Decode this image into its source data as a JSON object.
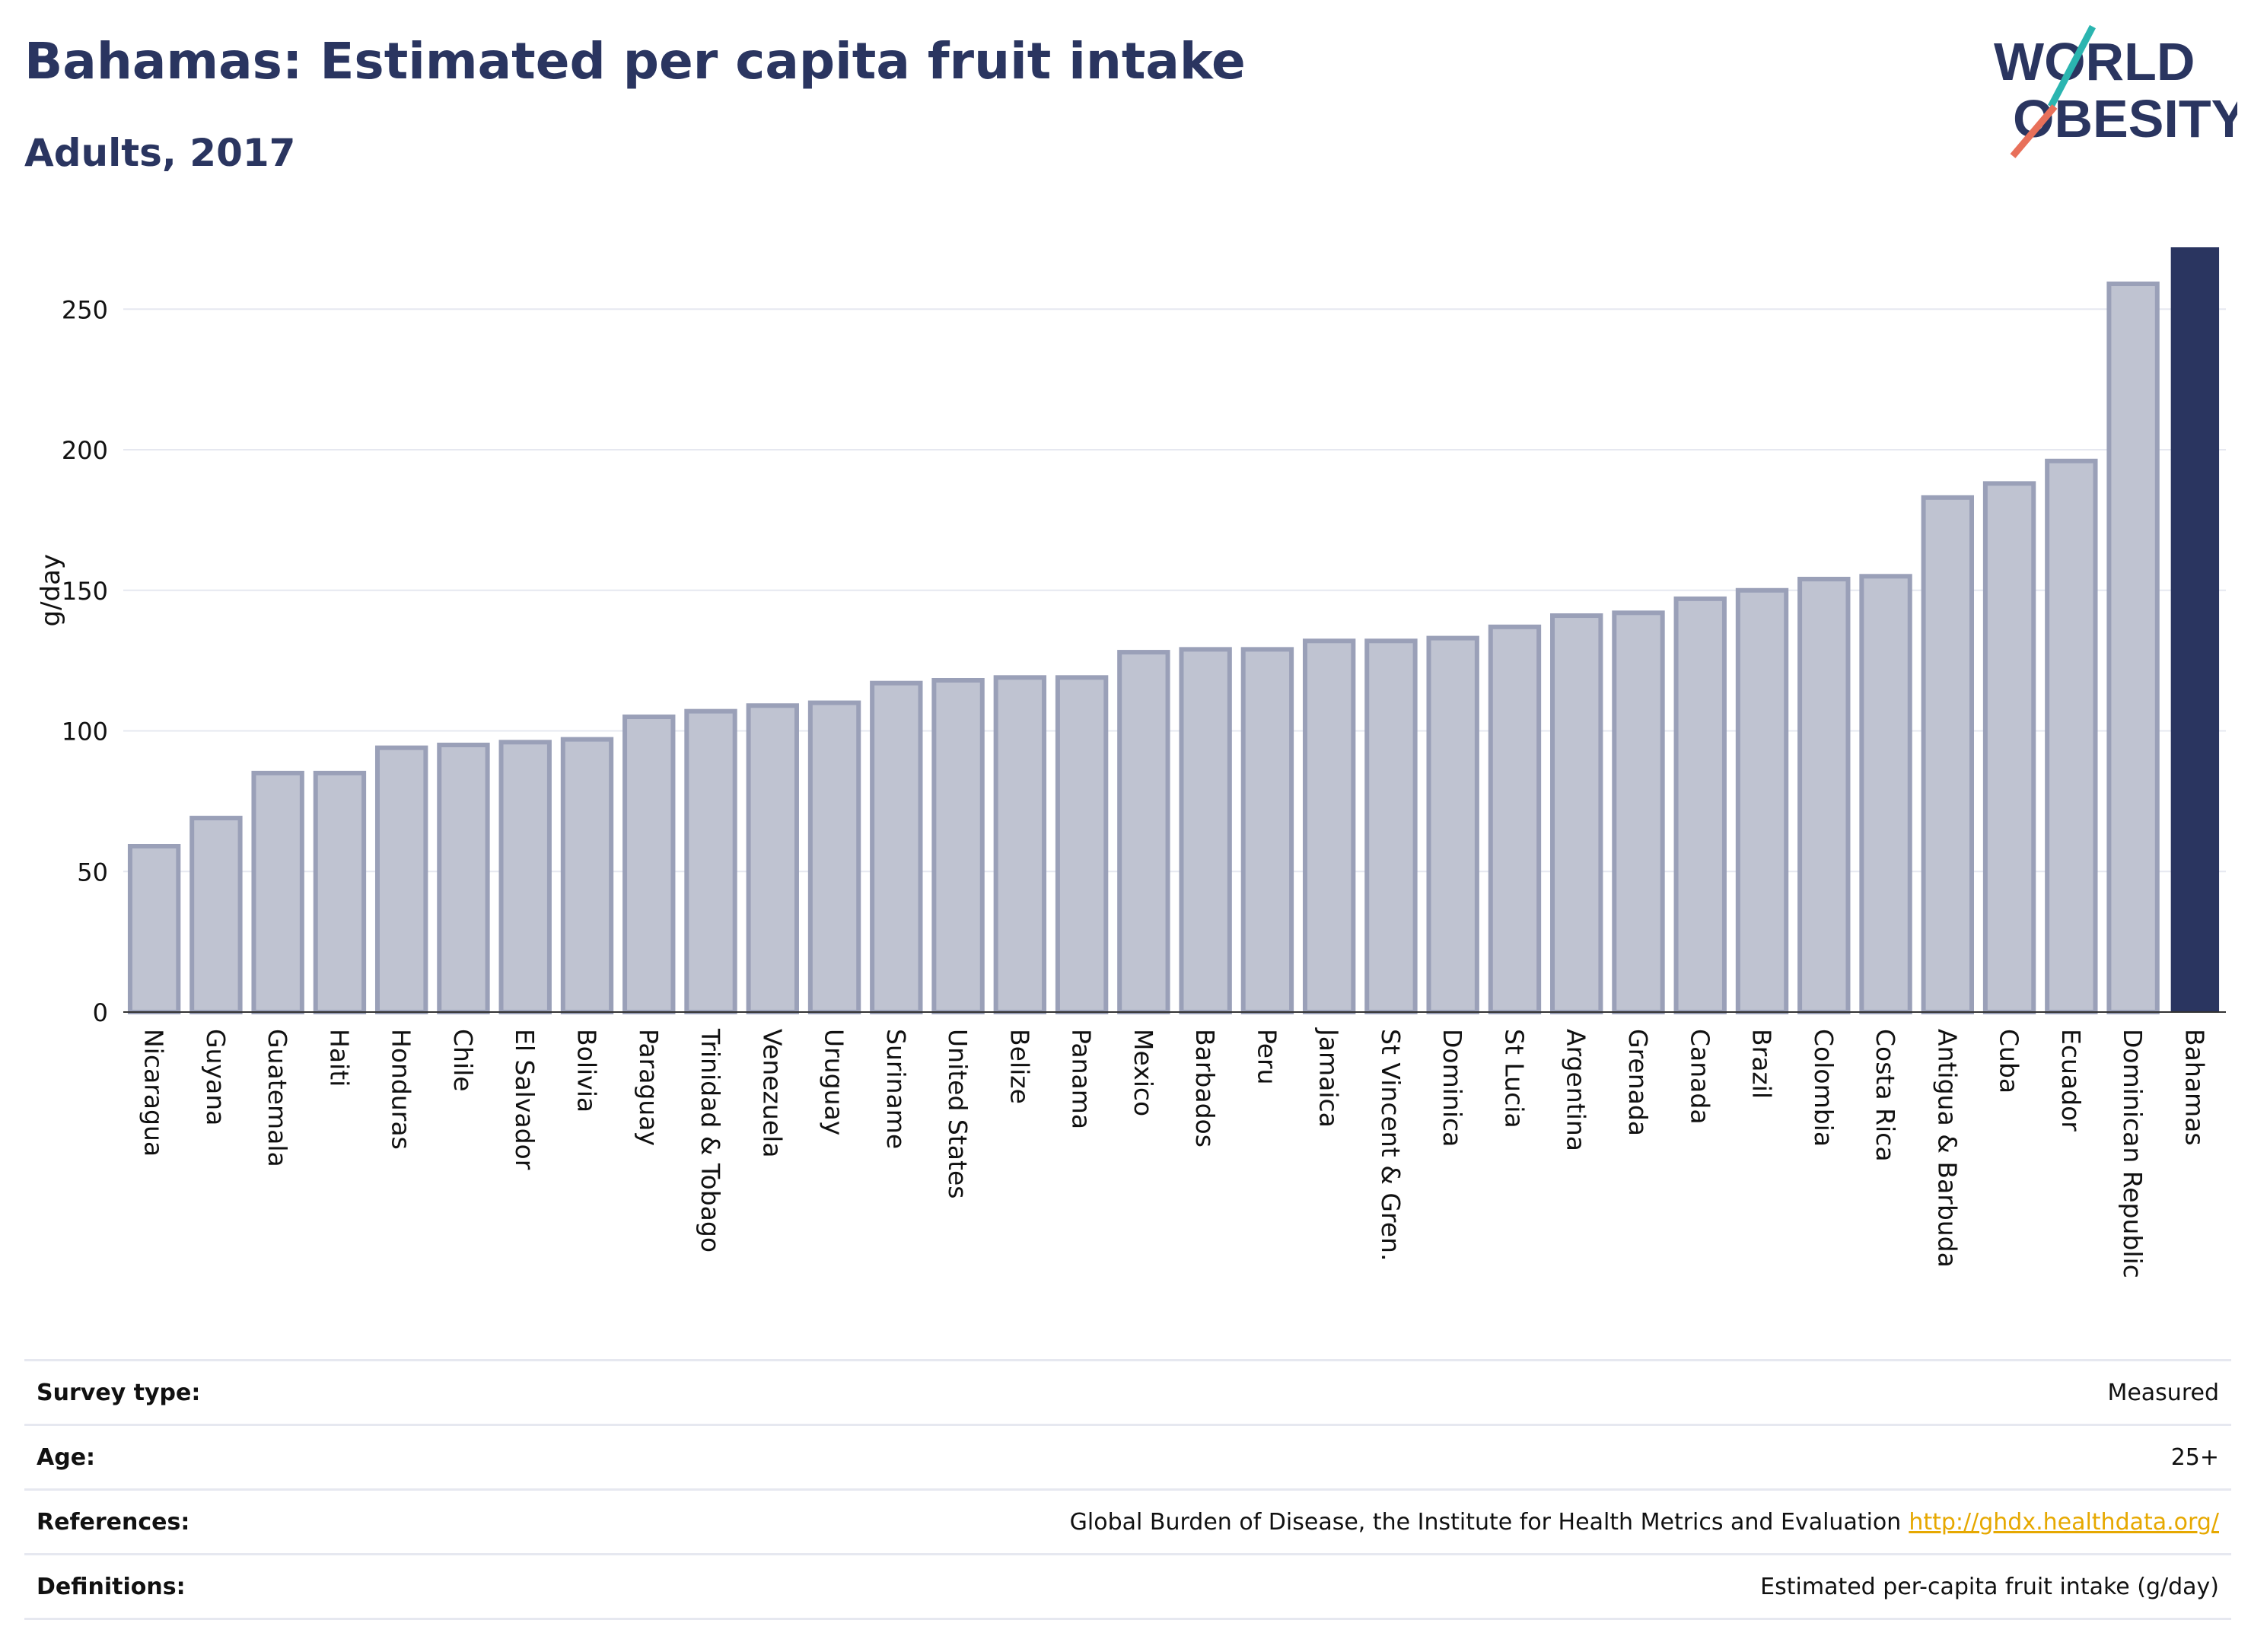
{
  "header": {
    "title": "Bahamas: Estimated per capita fruit intake",
    "subtitle": "Adults, 2017"
  },
  "logo": {
    "line1": "WORLD",
    "line2": "OBESITY"
  },
  "colors": {
    "bar": "#bfc3d1",
    "bar_border": "#9aa0b8",
    "highlight": "#2a3560",
    "grid": "#e6e8f0",
    "axis_text": "#111111",
    "logo_teal": "#2bb5b0",
    "logo_coral": "#e8705a"
  },
  "chart_data": {
    "type": "bar",
    "ylabel": "g/day",
    "ylim": [
      0,
      272
    ],
    "yticks": [
      0,
      50,
      100,
      150,
      200,
      250
    ],
    "grid": true,
    "highlight_category": "Bahamas",
    "categories": [
      "Nicaragua",
      "Guyana",
      "Guatemala",
      "Haiti",
      "Honduras",
      "Chile",
      "El Salvador",
      "Bolivia",
      "Paraguay",
      "Trinidad & Tobago",
      "Venezuela",
      "Uruguay",
      "Suriname",
      "United States",
      "Belize",
      "Panama",
      "Mexico",
      "Barbados",
      "Peru",
      "Jamaica",
      "St Vincent & Gren.",
      "Dominica",
      "St Lucia",
      "Argentina",
      "Grenada",
      "Canada",
      "Brazil",
      "Colombia",
      "Costa Rica",
      "Antigua & Barbuda",
      "Cuba",
      "Ecuador",
      "Dominican Republic",
      "Bahamas"
    ],
    "values": [
      59,
      69,
      85,
      85,
      94,
      95,
      96,
      97,
      105,
      107,
      109,
      110,
      117,
      118,
      119,
      119,
      128,
      129,
      129,
      132,
      132,
      133,
      137,
      141,
      142,
      147,
      150,
      154,
      155,
      183,
      188,
      196,
      259,
      272
    ]
  },
  "meta": [
    {
      "label": "Survey type:",
      "value": "Measured"
    },
    {
      "label": "Age:",
      "value": "25+"
    },
    {
      "label": "References:",
      "value": "Global Burden of Disease, the Institute for Health Metrics and Evaluation",
      "link": "http://ghdx.healthdata.org/"
    },
    {
      "label": "Definitions:",
      "value": "Estimated per-capita fruit intake (g/day)"
    }
  ]
}
